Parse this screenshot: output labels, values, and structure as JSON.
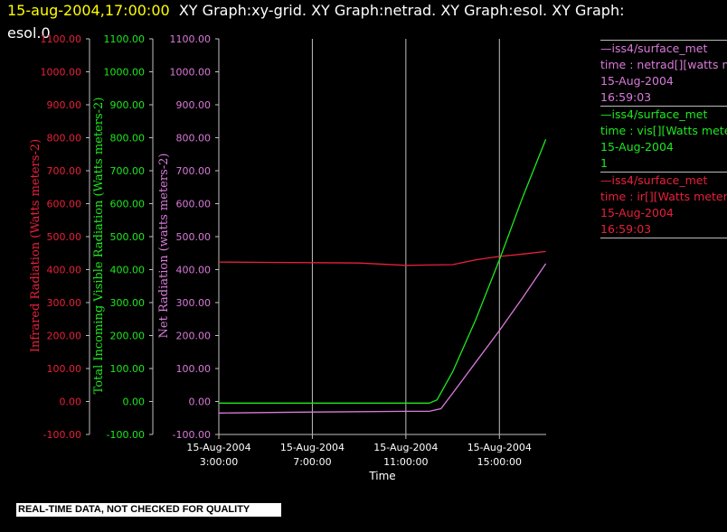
{
  "header": {
    "timestamp": "15-aug-2004,17:00:00",
    "titles_line1": "XY Graph:xy-grid.  XY Graph:netrad.  XY Graph:esol.  XY Graph:",
    "titles_line2": "esol.0"
  },
  "colors": {
    "red": "#e8203a",
    "green": "#1ee81e",
    "violet": "#d97ad9",
    "yellow": "#ffff00",
    "white": "#ffffff",
    "grid": "#bfbfbf",
    "axis": "#bfbfbf"
  },
  "legend": {
    "items": [
      {
        "line1": "—iss4/surface_met",
        "line2": "time : netrad[][watts me",
        "line3": "15-Aug-2004",
        "line4": "16:59:03",
        "color": "#d97ad9"
      },
      {
        "line1": "—iss4/surface_met",
        "line2": "time : vis[][Watts meter",
        "line3": "15-Aug-2004",
        "line4": "1",
        "color": "#1ee81e"
      },
      {
        "line1": "—iss4/surface_met",
        "line2": "time : ir[][Watts meters",
        "line3": "15-Aug-2004",
        "line4": "16:59:03",
        "color": "#e8203a"
      }
    ]
  },
  "notice": "REAL-TIME DATA, NOT CHECKED FOR QUALITY",
  "chart_data": {
    "type": "line",
    "xlabel": "Time",
    "x_ticks": [
      {
        "date": "15-Aug-2004",
        "time": "3:00:00"
      },
      {
        "date": "15-Aug-2004",
        "time": "7:00:00"
      },
      {
        "date": "15-Aug-2004",
        "time": "11:00:00"
      },
      {
        "date": "15-Aug-2004",
        "time": "15:00:00"
      }
    ],
    "xlim": [
      "2004-08-15 03:00",
      "2004-08-15 17:00"
    ],
    "y_axes": [
      {
        "label": "Infrared Radiation (Watts meters-2)",
        "color": "#e8203a",
        "ylim": [
          -100,
          1100
        ],
        "ticks": [
          "-100.00",
          "0.00",
          "100.00",
          "200.00",
          "300.00",
          "400.00",
          "500.00",
          "600.00",
          "700.00",
          "800.00",
          "900.00",
          "1000.00",
          "1100.00"
        ]
      },
      {
        "label": "Total Incoming Visible Radiation (Watts meters-2)",
        "color": "#1ee81e",
        "ylim": [
          -100,
          1100
        ],
        "ticks": [
          "-100.00",
          "0.00",
          "100.00",
          "200.00",
          "300.00",
          "400.00",
          "500.00",
          "600.00",
          "700.00",
          "800.00",
          "900.00",
          "1000.00",
          "1100.00"
        ]
      },
      {
        "label": "Net Radiation (watts meters-2)",
        "color": "#d97ad9",
        "ylim": [
          -100,
          1100
        ],
        "ticks": [
          "-100.00",
          "0.00",
          "100.00",
          "200.00",
          "300.00",
          "400.00",
          "500.00",
          "600.00",
          "700.00",
          "800.00",
          "900.00",
          "1000.00",
          "1100.00"
        ]
      }
    ],
    "grid_vertical": true,
    "series": [
      {
        "name": "iss4/surface_met ir",
        "color": "#e8203a",
        "x": [
          "2004-08-15 03:00",
          "2004-08-15 05:00",
          "2004-08-15 07:00",
          "2004-08-15 09:00",
          "2004-08-15 11:00",
          "2004-08-15 12:00",
          "2004-08-15 13:00",
          "2004-08-15 14:00",
          "2004-08-15 15:00",
          "2004-08-15 16:00",
          "2004-08-15 16:59"
        ],
        "y": [
          423,
          422,
          421,
          420,
          413,
          414,
          415,
          430,
          440,
          447,
          455
        ]
      },
      {
        "name": "iss4/surface_met vis",
        "color": "#1ee81e",
        "x": [
          "2004-08-15 03:00",
          "2004-08-15 07:00",
          "2004-08-15 11:00",
          "2004-08-15 12:00",
          "2004-08-15 12:20",
          "2004-08-15 13:00",
          "2004-08-15 14:00",
          "2004-08-15 15:00",
          "2004-08-15 16:00",
          "2004-08-15 16:59"
        ],
        "y": [
          -5,
          -5,
          -5,
          -5,
          5,
          90,
          250,
          430,
          620,
          795
        ]
      },
      {
        "name": "iss4/surface_met netrad",
        "color": "#d97ad9",
        "x": [
          "2004-08-15 03:00",
          "2004-08-15 07:00",
          "2004-08-15 11:00",
          "2004-08-15 12:00",
          "2004-08-15 12:30",
          "2004-08-15 13:00",
          "2004-08-15 14:00",
          "2004-08-15 15:00",
          "2004-08-15 16:00",
          "2004-08-15 16:59"
        ],
        "y": [
          -35,
          -32,
          -30,
          -30,
          -22,
          25,
          120,
          215,
          315,
          418
        ]
      }
    ]
  }
}
